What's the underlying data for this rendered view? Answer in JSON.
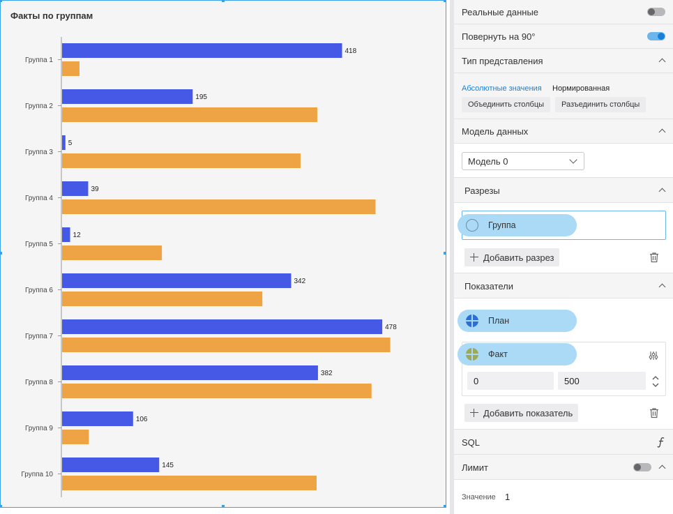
{
  "chart_title": "Факты по группам",
  "chart_data": {
    "type": "bar",
    "orientation": "horizontal",
    "categories": [
      "Группа 1",
      "Группа 2",
      "Группа 3",
      "Группа 4",
      "Группа 5",
      "Группа 6",
      "Группа 7",
      "Группа 8",
      "Группа 9",
      "Группа  10"
    ],
    "series": [
      {
        "values": [
          418,
          195,
          5,
          39,
          12,
          342,
          478,
          382,
          106,
          145
        ],
        "color": "#4558e6",
        "show_labels": true
      },
      {
        "values": [
          26,
          381,
          356,
          468,
          149,
          299,
          490,
          462,
          40,
          380
        ],
        "color": "#eea444",
        "show_labels": false
      }
    ],
    "xlim": [
      0,
      500
    ],
    "grid": false,
    "legend": "none"
  },
  "settings": {
    "real_data_label": "Реальные данные",
    "rotate_label": "Повернуть на 90°",
    "view_type_label": "Тип представления",
    "absolute_values_link": "Абсолютные значения",
    "normalized_link": "Нормированная",
    "merge_columns_btn": "Объединить столбцы",
    "split_columns_btn": "Разъединить столбцы",
    "data_model_label": "Модель данных",
    "model_select_value": "Модель 0",
    "dimensions_label": "Разрезы",
    "dimension_item": "Группа",
    "add_dimension_btn": "Добавить разрез",
    "measures_label": "Показатели",
    "measure_plan": "План",
    "measure_fact": "Факт",
    "range_min": "0",
    "range_max": "500",
    "add_measure_btn": "Добавить показатель",
    "sql_label": "SQL",
    "limit_label": "Лимит",
    "value_label": "Значение",
    "value_input": "1"
  },
  "colors": {
    "accent": "#1a7fd8",
    "link_active": "#1a7fd8",
    "pill_bg": "#aadaf5",
    "plan_icon": "#2b6fd6",
    "fact_icon": "#9ca85a"
  }
}
